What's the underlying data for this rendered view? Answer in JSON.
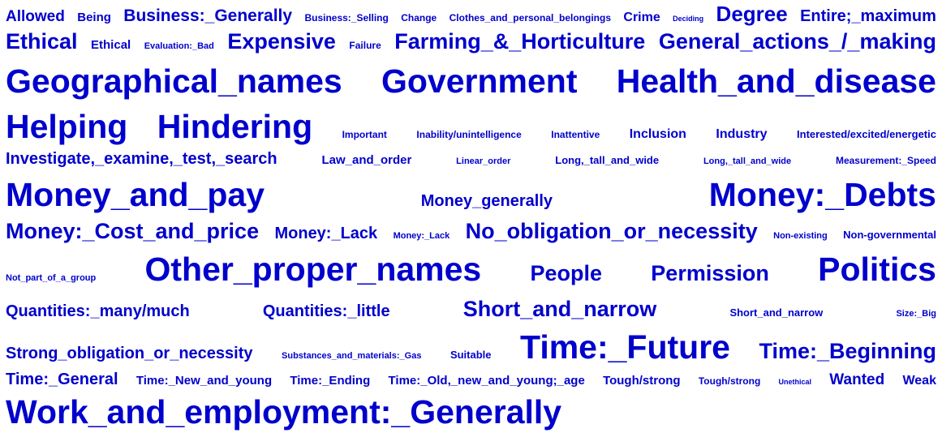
{
  "style": {
    "word_color": "#0000cc",
    "background": "#ffffff"
  },
  "word_cloud": {
    "rows": [
      {
        "words": [
          {
            "text": "Allowed",
            "size": 19
          },
          {
            "text": "Being",
            "size": 15
          },
          {
            "text": "Business:_Generally",
            "size": 21
          },
          {
            "text": "Business:_Selling",
            "size": 12
          },
          {
            "text": "Change",
            "size": 12
          },
          {
            "text": "Clothes_and_personal_belongings",
            "size": 12
          },
          {
            "text": "Crime",
            "size": 16
          },
          {
            "text": "Deciding",
            "size": 9
          },
          {
            "text": "Degree",
            "size": 26
          },
          {
            "text": "Entire;_maximum",
            "size": 20
          }
        ]
      },
      {
        "words": [
          {
            "text": "Ethical",
            "size": 27
          },
          {
            "text": "Ethical",
            "size": 15
          },
          {
            "text": "Evaluation:_Bad",
            "size": 11
          },
          {
            "text": "Expensive",
            "size": 27
          },
          {
            "text": "Failure",
            "size": 12
          },
          {
            "text": "Farming_&_Horticulture",
            "size": 27
          },
          {
            "text": "General_actions_/_making",
            "size": 27
          }
        ]
      },
      {
        "words": [
          {
            "text": "Geographical_names",
            "size": 41
          },
          {
            "text": "Government",
            "size": 41
          },
          {
            "text": "Health_and_disease",
            "size": 41
          }
        ]
      },
      {
        "words": [
          {
            "text": "Helping",
            "size": 41
          },
          {
            "text": "Hindering",
            "size": 41
          },
          {
            "text": "Important",
            "size": 12
          },
          {
            "text": "Inability/unintelligence",
            "size": 12
          },
          {
            "text": "Inattentive",
            "size": 12
          },
          {
            "text": "Inclusion",
            "size": 16
          },
          {
            "text": "Industry",
            "size": 16
          },
          {
            "text": "Interested/excited/energetic",
            "size": 13
          }
        ]
      },
      {
        "words": [
          {
            "text": "Investigate,_examine,_test,_search",
            "size": 20
          },
          {
            "text": "Law_and_order",
            "size": 15
          },
          {
            "text": "Linear_order",
            "size": 11
          },
          {
            "text": "Long,_tall_and_wide",
            "size": 13
          },
          {
            "text": "Long,_tall_and_wide",
            "size": 11
          },
          {
            "text": "Measurement:_Speed",
            "size": 12
          }
        ]
      },
      {
        "words": [
          {
            "text": "Money_and_pay",
            "size": 41
          },
          {
            "text": "Money_generally",
            "size": 20
          },
          {
            "text": "Money:_Debts",
            "size": 41
          }
        ]
      },
      {
        "words": [
          {
            "text": "Money:_Cost_and_price",
            "size": 27
          },
          {
            "text": "Money:_Lack",
            "size": 20
          },
          {
            "text": "Money:_Lack",
            "size": 11
          },
          {
            "text": "No_obligation_or_necessity",
            "size": 27
          },
          {
            "text": "Non-existing",
            "size": 11
          },
          {
            "text": "Non-governmental",
            "size": 13
          }
        ]
      },
      {
        "words": [
          {
            "text": "Not_part_of_a_group",
            "size": 11
          },
          {
            "text": "Other_proper_names",
            "size": 41
          },
          {
            "text": "People",
            "size": 27
          },
          {
            "text": "Permission",
            "size": 27
          },
          {
            "text": "Politics",
            "size": 41
          }
        ]
      },
      {
        "words": [
          {
            "text": "Quantities:_many/much",
            "size": 20
          },
          {
            "text": "Quantities:_little",
            "size": 20
          },
          {
            "text": "Short_and_narrow",
            "size": 27
          },
          {
            "text": "Short_and_narrow",
            "size": 13
          },
          {
            "text": "Size:_Big",
            "size": 11
          }
        ]
      },
      {
        "words": [
          {
            "text": "Strong_obligation_or_necessity",
            "size": 20
          },
          {
            "text": "Substances_and_materials:_Gas",
            "size": 11
          },
          {
            "text": "Suitable",
            "size": 13
          },
          {
            "text": "Time:_Future",
            "size": 41
          },
          {
            "text": "Time:_Beginning",
            "size": 27
          }
        ]
      },
      {
        "words": [
          {
            "text": "Time:_General",
            "size": 20
          },
          {
            "text": "Time:_New_and_young",
            "size": 15
          },
          {
            "text": "Time:_Ending",
            "size": 15
          },
          {
            "text": "Time:_Old,_new_and_young;_age",
            "size": 15
          },
          {
            "text": "Tough/strong",
            "size": 15
          },
          {
            "text": "Tough/strong",
            "size": 12
          },
          {
            "text": "Unethical",
            "size": 9
          },
          {
            "text": "Wanted",
            "size": 19
          },
          {
            "text": "Weak",
            "size": 16
          }
        ]
      },
      {
        "words": [
          {
            "text": "Work_and_employment:_Generally",
            "size": 41
          }
        ]
      }
    ]
  }
}
